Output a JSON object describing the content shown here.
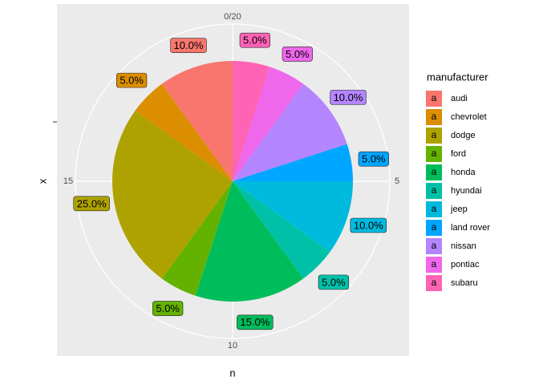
{
  "chart_data": {
    "type": "pie",
    "x_label": "n",
    "y_label": "x",
    "legend_title": "manufacturer",
    "legend_key_text": "a",
    "categories": [
      "audi",
      "chevrolet",
      "dodge",
      "ford",
      "honda",
      "hyundai",
      "jeep",
      "land rover",
      "nissan",
      "pontiac",
      "subaru"
    ],
    "values": [
      2,
      1,
      5,
      1,
      3,
      1,
      2,
      1,
      2,
      1,
      1
    ],
    "value_labels": [
      "10.0%",
      "5.0%",
      "25.0%",
      "5.0%",
      "15.0%",
      "5.0%",
      "10.0%",
      "5.0%",
      "10.0%",
      "5.0%",
      "5.0%"
    ],
    "colors": [
      "#F8766D",
      "#DB8E00",
      "#AEA200",
      "#64B200",
      "#00BD5C",
      "#00C1A7",
      "#00BADE",
      "#00A6FF",
      "#B385FF",
      "#EF67EB",
      "#FF63B6"
    ],
    "xlim": [
      0,
      20
    ],
    "xticks": [
      {
        "value": 0,
        "label": "0/20"
      },
      5,
      10,
      15
    ]
  }
}
